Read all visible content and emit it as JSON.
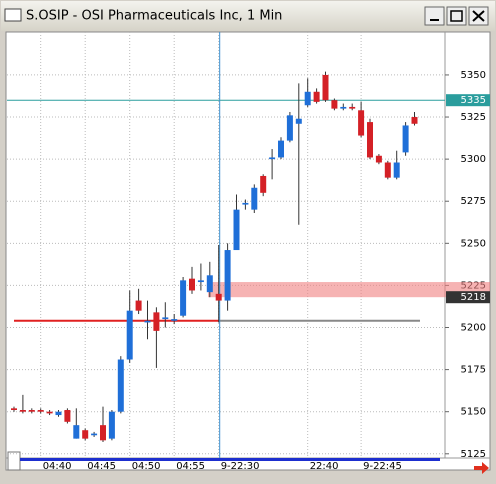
{
  "chart_data": {
    "type": "candlestick",
    "title": "S.OSIP - OSI Pharmaceuticals Inc, 1 Min",
    "categories": [
      null,
      null,
      null,
      "04:40",
      null,
      null,
      null,
      null,
      "04:45",
      null,
      null,
      null,
      null,
      "04:50",
      null,
      null,
      null,
      null,
      "04:55",
      null,
      null,
      null,
      null,
      "9-22:30",
      null,
      null,
      null,
      null,
      null,
      null,
      null,
      null,
      null,
      "22:40",
      null,
      null,
      null,
      null,
      null,
      "9-22:45",
      null,
      null,
      null,
      null,
      null,
      null
    ],
    "open": [
      5152,
      5151,
      5151,
      5151,
      5150,
      5148,
      5151,
      5134,
      5139,
      5136,
      5142,
      5134,
      5150,
      5181,
      5216,
      5203,
      5209,
      5205,
      5204,
      5207,
      5229,
      5227,
      5221,
      5220,
      5216,
      5246,
      5273,
      5270,
      5290,
      5300,
      5301,
      5311,
      5321,
      5332,
      5340,
      5350,
      5335,
      5330,
      5331,
      5329,
      5322,
      5302,
      5298,
      5289,
      5304,
      5325
    ],
    "high": [
      5153,
      5160,
      5152,
      5152,
      5151,
      5151,
      5152,
      5152,
      5140,
      5138,
      5153,
      5151,
      5183,
      5222,
      5223,
      5216,
      5212,
      5215,
      5208,
      5230,
      5236,
      5238,
      5239,
      5249,
      5250,
      5279,
      5276,
      5285,
      5291,
      5306,
      5313,
      5328,
      5345,
      5348,
      5342,
      5352,
      5336,
      5333,
      5333,
      5334,
      5324,
      5303,
      5299,
      5305,
      5322,
      5328
    ],
    "low": [
      5150,
      5149,
      5149,
      5149,
      5148,
      5147,
      5143,
      5134,
      5133,
      5135,
      5132,
      5133,
      5149,
      5179,
      5208,
      5193,
      5176,
      5200,
      5202,
      5206,
      5220,
      5222,
      5218,
      5203,
      5210,
      5246,
      5270,
      5268,
      5278,
      5288,
      5300,
      5310,
      5261,
      5331,
      5333,
      5334,
      5329,
      5329,
      5329,
      5313,
      5300,
      5297,
      5288,
      5288,
      5302,
      5320
    ],
    "close": [
      5151,
      5150,
      5150,
      5150,
      5149,
      5150,
      5144,
      5142,
      5134,
      5137,
      5133,
      5150,
      5181,
      5210,
      5210,
      5204,
      5198,
      5206,
      5205,
      5228,
      5222,
      5228,
      5231,
      5216,
      5246,
      5270,
      5274,
      5283,
      5280,
      5301,
      5311,
      5326,
      5324,
      5340,
      5334,
      5335,
      5330,
      5331,
      5330,
      5314,
      5301,
      5298,
      5289,
      5298,
      5320,
      5321
    ],
    "up_color": "#1f6fd8",
    "down_color": "#d42026",
    "ylim": [
      5122.5,
      5375.5
    ],
    "yticks": [
      5125,
      5150,
      5175,
      5200,
      5225,
      5250,
      5275,
      5300,
      5325,
      5350
    ],
    "grid": true,
    "last_price": 5335,
    "order_price": 5218,
    "support_line": 5204,
    "zone": [
      5218,
      5227
    ],
    "marker_index": 23
  }
}
